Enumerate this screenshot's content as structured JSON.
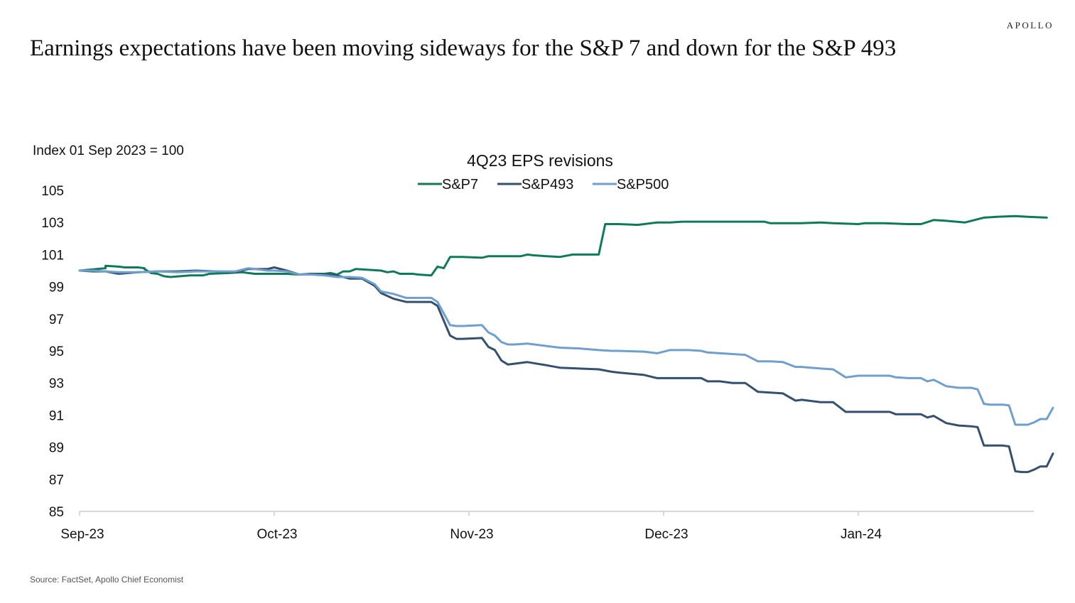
{
  "brand": "APOLLO",
  "headline": "Earnings expectations have been moving sideways for the S&P 7 and down for the S&P 493",
  "source": "Source: FactSet, Apollo Chief Economist",
  "chart_data": {
    "type": "line",
    "title": "4Q23 EPS revisions",
    "ylabel": "Index 01 Sep 2023 = 100",
    "xlabel": "",
    "ylim": [
      85,
      105
    ],
    "yticks": [
      85,
      87,
      89,
      91,
      93,
      95,
      97,
      99,
      101,
      103,
      105
    ],
    "x_ticks": [
      {
        "label": "Sep-23",
        "date": "2023-09-01"
      },
      {
        "label": "Oct-23",
        "date": "2023-10-01"
      },
      {
        "label": "Nov-23",
        "date": "2023-11-01"
      },
      {
        "label": "Dec-23",
        "date": "2023-12-01"
      },
      {
        "label": "Jan-24",
        "date": "2024-01-01"
      }
    ],
    "x_range": [
      "2023-09-01",
      "2024-01-28"
    ],
    "grid": false,
    "legend_position": "top-center",
    "series": [
      {
        "name": "S&P7",
        "color": "#0f7a5a",
        "points": [
          [
            "2023-09-01",
            100.0
          ],
          [
            "2023-09-05",
            100.15
          ],
          [
            "2023-09-05",
            100.2
          ],
          [
            "2023-09-05",
            100.3
          ],
          [
            "2023-09-07",
            100.25
          ],
          [
            "2023-09-08",
            100.2
          ],
          [
            "2023-09-10",
            100.2
          ],
          [
            "2023-09-11",
            100.15
          ],
          [
            "2023-09-11",
            100.1
          ],
          [
            "2023-09-12",
            99.85
          ],
          [
            "2023-09-13",
            99.8
          ],
          [
            "2023-09-14",
            99.65
          ],
          [
            "2023-09-15",
            99.6
          ],
          [
            "2023-09-18",
            99.7
          ],
          [
            "2023-09-20",
            99.7
          ],
          [
            "2023-09-21",
            99.8
          ],
          [
            "2023-09-24",
            99.85
          ],
          [
            "2023-09-26",
            99.9
          ],
          [
            "2023-09-28",
            99.8
          ],
          [
            "2023-10-01",
            99.8
          ],
          [
            "2023-10-03",
            99.8
          ],
          [
            "2023-10-05",
            99.75
          ],
          [
            "2023-10-07",
            99.8
          ],
          [
            "2023-10-09",
            99.8
          ],
          [
            "2023-10-10",
            99.85
          ],
          [
            "2023-10-11",
            99.75
          ],
          [
            "2023-10-12",
            99.95
          ],
          [
            "2023-10-13",
            99.95
          ],
          [
            "2023-10-14",
            100.1
          ],
          [
            "2023-10-16",
            100.05
          ],
          [
            "2023-10-18",
            100.0
          ],
          [
            "2023-10-19",
            99.9
          ],
          [
            "2023-10-20",
            99.95
          ],
          [
            "2023-10-21",
            99.8
          ],
          [
            "2023-10-23",
            99.8
          ],
          [
            "2023-10-24",
            99.75
          ],
          [
            "2023-10-26",
            99.7
          ],
          [
            "2023-10-27",
            100.25
          ],
          [
            "2023-10-28",
            100.15
          ],
          [
            "2023-10-29",
            100.85
          ],
          [
            "2023-10-31",
            100.85
          ],
          [
            "2023-11-03",
            100.8
          ],
          [
            "2023-11-04",
            100.9
          ],
          [
            "2023-11-07",
            100.9
          ],
          [
            "2023-11-09",
            100.9
          ],
          [
            "2023-11-10",
            101.0
          ],
          [
            "2023-11-11",
            100.95
          ],
          [
            "2023-11-13",
            100.9
          ],
          [
            "2023-11-15",
            100.85
          ],
          [
            "2023-11-17",
            101.0
          ],
          [
            "2023-11-19",
            101.0
          ],
          [
            "2023-11-20",
            101.0
          ],
          [
            "2023-11-21",
            101.0
          ],
          [
            "2023-11-22",
            102.9
          ],
          [
            "2023-11-24",
            102.9
          ],
          [
            "2023-11-27",
            102.85
          ],
          [
            "2023-11-28",
            102.9
          ],
          [
            "2023-11-30",
            103.0
          ],
          [
            "2023-12-02",
            103.0
          ],
          [
            "2023-12-04",
            103.05
          ],
          [
            "2023-12-06",
            103.05
          ],
          [
            "2023-12-08",
            103.05
          ],
          [
            "2023-12-11",
            103.05
          ],
          [
            "2023-12-14",
            103.05
          ],
          [
            "2023-12-17",
            103.05
          ],
          [
            "2023-12-18",
            102.95
          ],
          [
            "2023-12-20",
            102.95
          ],
          [
            "2023-12-23",
            102.95
          ],
          [
            "2023-12-26",
            103.0
          ],
          [
            "2023-12-28",
            102.95
          ],
          [
            "2024-01-01",
            102.9
          ],
          [
            "2024-01-02",
            102.95
          ],
          [
            "2024-01-05",
            102.95
          ],
          [
            "2024-01-09",
            102.9
          ],
          [
            "2024-01-11",
            102.9
          ],
          [
            "2024-01-13",
            103.15
          ],
          [
            "2024-01-15",
            103.1
          ],
          [
            "2024-01-18",
            103.0
          ],
          [
            "2024-01-19",
            103.1
          ],
          [
            "2024-01-21",
            103.3
          ],
          [
            "2024-01-23",
            103.35
          ],
          [
            "2024-01-26",
            103.4
          ],
          [
            "2024-01-28",
            103.35
          ],
          [
            "2024-01-31",
            103.3
          ]
        ]
      },
      {
        "name": "S&P493",
        "color": "#34506e",
        "points": [
          [
            "2023-09-01",
            100.0
          ],
          [
            "2023-09-03",
            99.95
          ],
          [
            "2023-09-05",
            99.95
          ],
          [
            "2023-09-07",
            99.8
          ],
          [
            "2023-09-10",
            99.9
          ],
          [
            "2023-09-13",
            99.95
          ],
          [
            "2023-09-16",
            99.95
          ],
          [
            "2023-09-19",
            100.0
          ],
          [
            "2023-09-22",
            99.95
          ],
          [
            "2023-09-25",
            99.9
          ],
          [
            "2023-09-27",
            100.1
          ],
          [
            "2023-09-30",
            100.1
          ],
          [
            "2023-10-01",
            100.2
          ],
          [
            "2023-10-03",
            100.0
          ],
          [
            "2023-10-05",
            99.75
          ],
          [
            "2023-10-07",
            99.8
          ],
          [
            "2023-10-09",
            99.75
          ],
          [
            "2023-10-11",
            99.7
          ],
          [
            "2023-10-13",
            99.5
          ],
          [
            "2023-10-15",
            99.5
          ],
          [
            "2023-10-17",
            99.05
          ],
          [
            "2023-10-18",
            98.6
          ],
          [
            "2023-10-20",
            98.25
          ],
          [
            "2023-10-22",
            98.05
          ],
          [
            "2023-10-24",
            98.05
          ],
          [
            "2023-10-26",
            98.05
          ],
          [
            "2023-10-27",
            97.8
          ],
          [
            "2023-10-29",
            95.95
          ],
          [
            "2023-10-30",
            95.75
          ],
          [
            "2023-10-31",
            95.75
          ],
          [
            "2023-11-03",
            95.8
          ],
          [
            "2023-11-04",
            95.25
          ],
          [
            "2023-11-05",
            95.05
          ],
          [
            "2023-11-06",
            94.4
          ],
          [
            "2023-11-07",
            94.15
          ],
          [
            "2023-11-08",
            94.2
          ],
          [
            "2023-11-10",
            94.3
          ],
          [
            "2023-11-13",
            94.1
          ],
          [
            "2023-11-15",
            93.95
          ],
          [
            "2023-11-18",
            93.9
          ],
          [
            "2023-11-21",
            93.85
          ],
          [
            "2023-11-23",
            93.7
          ],
          [
            "2023-11-24",
            93.65
          ],
          [
            "2023-11-28",
            93.5
          ],
          [
            "2023-11-30",
            93.3
          ],
          [
            "2023-12-02",
            93.3
          ],
          [
            "2023-12-05",
            93.3
          ],
          [
            "2023-12-07",
            93.3
          ],
          [
            "2023-12-08",
            93.1
          ],
          [
            "2023-12-10",
            93.1
          ],
          [
            "2023-12-12",
            93.0
          ],
          [
            "2023-12-14",
            93.0
          ],
          [
            "2023-12-16",
            92.45
          ],
          [
            "2023-12-18",
            92.4
          ],
          [
            "2023-12-20",
            92.35
          ],
          [
            "2023-12-22",
            91.9
          ],
          [
            "2023-12-23",
            91.95
          ],
          [
            "2023-12-26",
            91.8
          ],
          [
            "2023-12-28",
            91.8
          ],
          [
            "2023-12-30",
            91.2
          ],
          [
            "2024-01-01",
            91.2
          ],
          [
            "2024-01-04",
            91.2
          ],
          [
            "2024-01-06",
            91.2
          ],
          [
            "2024-01-07",
            91.05
          ],
          [
            "2024-01-09",
            91.05
          ],
          [
            "2024-01-11",
            91.05
          ],
          [
            "2024-01-12",
            90.85
          ],
          [
            "2024-01-13",
            90.95
          ],
          [
            "2024-01-15",
            90.5
          ],
          [
            "2024-01-17",
            90.35
          ],
          [
            "2024-01-19",
            90.3
          ],
          [
            "2024-01-20",
            90.25
          ],
          [
            "2024-01-21",
            89.1
          ],
          [
            "2024-01-22",
            89.1
          ],
          [
            "2024-01-24",
            89.1
          ],
          [
            "2024-01-25",
            89.05
          ],
          [
            "2024-01-26",
            87.5
          ],
          [
            "2024-01-27",
            87.45
          ],
          [
            "2024-01-28",
            87.45
          ],
          [
            "2024-01-29",
            87.6
          ],
          [
            "2024-01-30",
            87.8
          ],
          [
            "2024-01-31",
            87.8
          ],
          [
            "2024-02-01",
            88.6
          ]
        ]
      },
      {
        "name": "S&P500",
        "color": "#6e9fcd",
        "points": [
          [
            "2023-09-01",
            100.0
          ],
          [
            "2023-09-03",
            100.0
          ],
          [
            "2023-09-05",
            99.95
          ],
          [
            "2023-09-07",
            99.9
          ],
          [
            "2023-09-10",
            99.9
          ],
          [
            "2023-09-13",
            99.95
          ],
          [
            "2023-09-16",
            99.9
          ],
          [
            "2023-09-19",
            99.95
          ],
          [
            "2023-09-22",
            99.95
          ],
          [
            "2023-09-25",
            99.95
          ],
          [
            "2023-09-27",
            100.15
          ],
          [
            "2023-09-30",
            100.0
          ],
          [
            "2023-10-01",
            100.0
          ],
          [
            "2023-10-03",
            99.95
          ],
          [
            "2023-10-05",
            99.75
          ],
          [
            "2023-10-07",
            99.75
          ],
          [
            "2023-10-09",
            99.7
          ],
          [
            "2023-10-11",
            99.6
          ],
          [
            "2023-10-13",
            99.6
          ],
          [
            "2023-10-15",
            99.55
          ],
          [
            "2023-10-17",
            99.15
          ],
          [
            "2023-10-18",
            98.7
          ],
          [
            "2023-10-20",
            98.55
          ],
          [
            "2023-10-22",
            98.3
          ],
          [
            "2023-10-24",
            98.3
          ],
          [
            "2023-10-26",
            98.3
          ],
          [
            "2023-10-27",
            98.05
          ],
          [
            "2023-10-29",
            96.6
          ],
          [
            "2023-10-30",
            96.55
          ],
          [
            "2023-10-31",
            96.55
          ],
          [
            "2023-11-03",
            96.6
          ],
          [
            "2023-11-04",
            96.15
          ],
          [
            "2023-11-05",
            95.95
          ],
          [
            "2023-11-06",
            95.55
          ],
          [
            "2023-11-07",
            95.4
          ],
          [
            "2023-11-08",
            95.4
          ],
          [
            "2023-11-10",
            95.45
          ],
          [
            "2023-11-13",
            95.3
          ],
          [
            "2023-11-15",
            95.2
          ],
          [
            "2023-11-18",
            95.15
          ],
          [
            "2023-11-21",
            95.05
          ],
          [
            "2023-11-23",
            95.0
          ],
          [
            "2023-11-24",
            95.0
          ],
          [
            "2023-11-28",
            94.95
          ],
          [
            "2023-11-30",
            94.85
          ],
          [
            "2023-12-02",
            95.05
          ],
          [
            "2023-12-05",
            95.05
          ],
          [
            "2023-12-07",
            95.0
          ],
          [
            "2023-12-08",
            94.9
          ],
          [
            "2023-12-10",
            94.85
          ],
          [
            "2023-12-12",
            94.8
          ],
          [
            "2023-12-14",
            94.75
          ],
          [
            "2023-12-16",
            94.35
          ],
          [
            "2023-12-18",
            94.35
          ],
          [
            "2023-12-20",
            94.3
          ],
          [
            "2023-12-22",
            94.0
          ],
          [
            "2023-12-23",
            94.0
          ],
          [
            "2023-12-26",
            93.9
          ],
          [
            "2023-12-28",
            93.85
          ],
          [
            "2023-12-30",
            93.35
          ],
          [
            "2024-01-01",
            93.45
          ],
          [
            "2024-01-04",
            93.45
          ],
          [
            "2024-01-06",
            93.45
          ],
          [
            "2024-01-07",
            93.35
          ],
          [
            "2024-01-09",
            93.3
          ],
          [
            "2024-01-11",
            93.3
          ],
          [
            "2024-01-12",
            93.1
          ],
          [
            "2024-01-13",
            93.2
          ],
          [
            "2024-01-15",
            92.8
          ],
          [
            "2024-01-17",
            92.7
          ],
          [
            "2024-01-19",
            92.7
          ],
          [
            "2024-01-20",
            92.6
          ],
          [
            "2024-01-21",
            91.7
          ],
          [
            "2024-01-22",
            91.65
          ],
          [
            "2024-01-24",
            91.65
          ],
          [
            "2024-01-25",
            91.6
          ],
          [
            "2024-01-26",
            90.4
          ],
          [
            "2024-01-27",
            90.4
          ],
          [
            "2024-01-28",
            90.4
          ],
          [
            "2024-01-29",
            90.55
          ],
          [
            "2024-01-30",
            90.75
          ],
          [
            "2024-01-31",
            90.75
          ],
          [
            "2024-02-01",
            91.45
          ]
        ]
      }
    ]
  }
}
